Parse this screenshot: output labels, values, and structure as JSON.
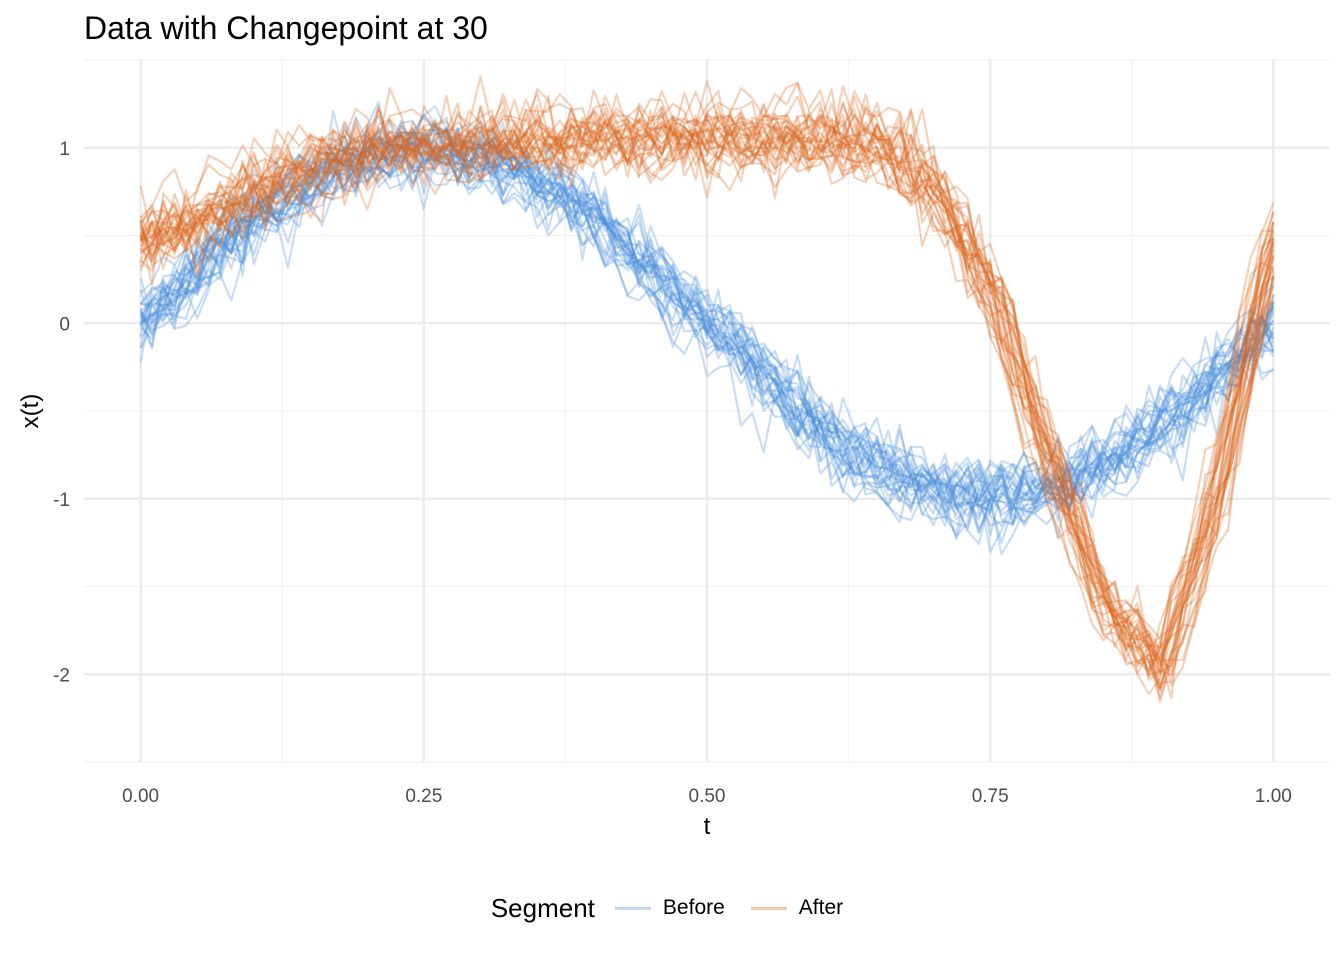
{
  "chart_data": {
    "type": "line",
    "title": "Data with Changepoint at 30",
    "xlabel": "t",
    "ylabel": "x(t)",
    "xlim": [
      -0.05,
      1.05
    ],
    "ylim": [
      -2.5,
      1.5
    ],
    "x_ticks": [
      0.0,
      0.25,
      0.5,
      0.75,
      1.0
    ],
    "x_tick_labels": [
      "0.00",
      "0.25",
      "0.50",
      "0.75",
      "1.00"
    ],
    "y_ticks": [
      -2,
      -1,
      0,
      1
    ],
    "y_tick_labels": [
      "-2",
      "-1",
      "0",
      "1"
    ],
    "grid": true,
    "legend_position": "bottom",
    "legend_title": "Segment",
    "series": [
      {
        "name": "Before",
        "color": "#4A90D9",
        "opacity": 0.3,
        "curves": 30,
        "noise_sd": 0.09,
        "mean_x": [
          0.0,
          0.05,
          0.1,
          0.15,
          0.2,
          0.25,
          0.3,
          0.35,
          0.4,
          0.45,
          0.5,
          0.55,
          0.6,
          0.65,
          0.7,
          0.75,
          0.8,
          0.85,
          0.9,
          0.95,
          1.0
        ],
        "mean_y": [
          0.0,
          0.3,
          0.6,
          0.8,
          0.95,
          1.0,
          0.95,
          0.82,
          0.6,
          0.3,
          0.0,
          -0.3,
          -0.6,
          -0.82,
          -0.95,
          -1.0,
          -0.95,
          -0.8,
          -0.6,
          -0.3,
          0.0
        ]
      },
      {
        "name": "After",
        "color": "#D9661F",
        "opacity": 0.3,
        "curves": 30,
        "noise_sd": 0.09,
        "mean_x": [
          0.0,
          0.05,
          0.1,
          0.15,
          0.2,
          0.25,
          0.3,
          0.35,
          0.4,
          0.45,
          0.5,
          0.55,
          0.6,
          0.65,
          0.7,
          0.75,
          0.8,
          0.85,
          0.9,
          0.95,
          1.0
        ],
        "mean_y": [
          0.45,
          0.58,
          0.75,
          0.88,
          0.97,
          1.0,
          1.02,
          1.03,
          1.04,
          1.04,
          1.04,
          1.04,
          1.05,
          1.0,
          0.75,
          0.2,
          -0.75,
          -1.6,
          -2.0,
          -1.0,
          0.5
        ]
      }
    ]
  }
}
